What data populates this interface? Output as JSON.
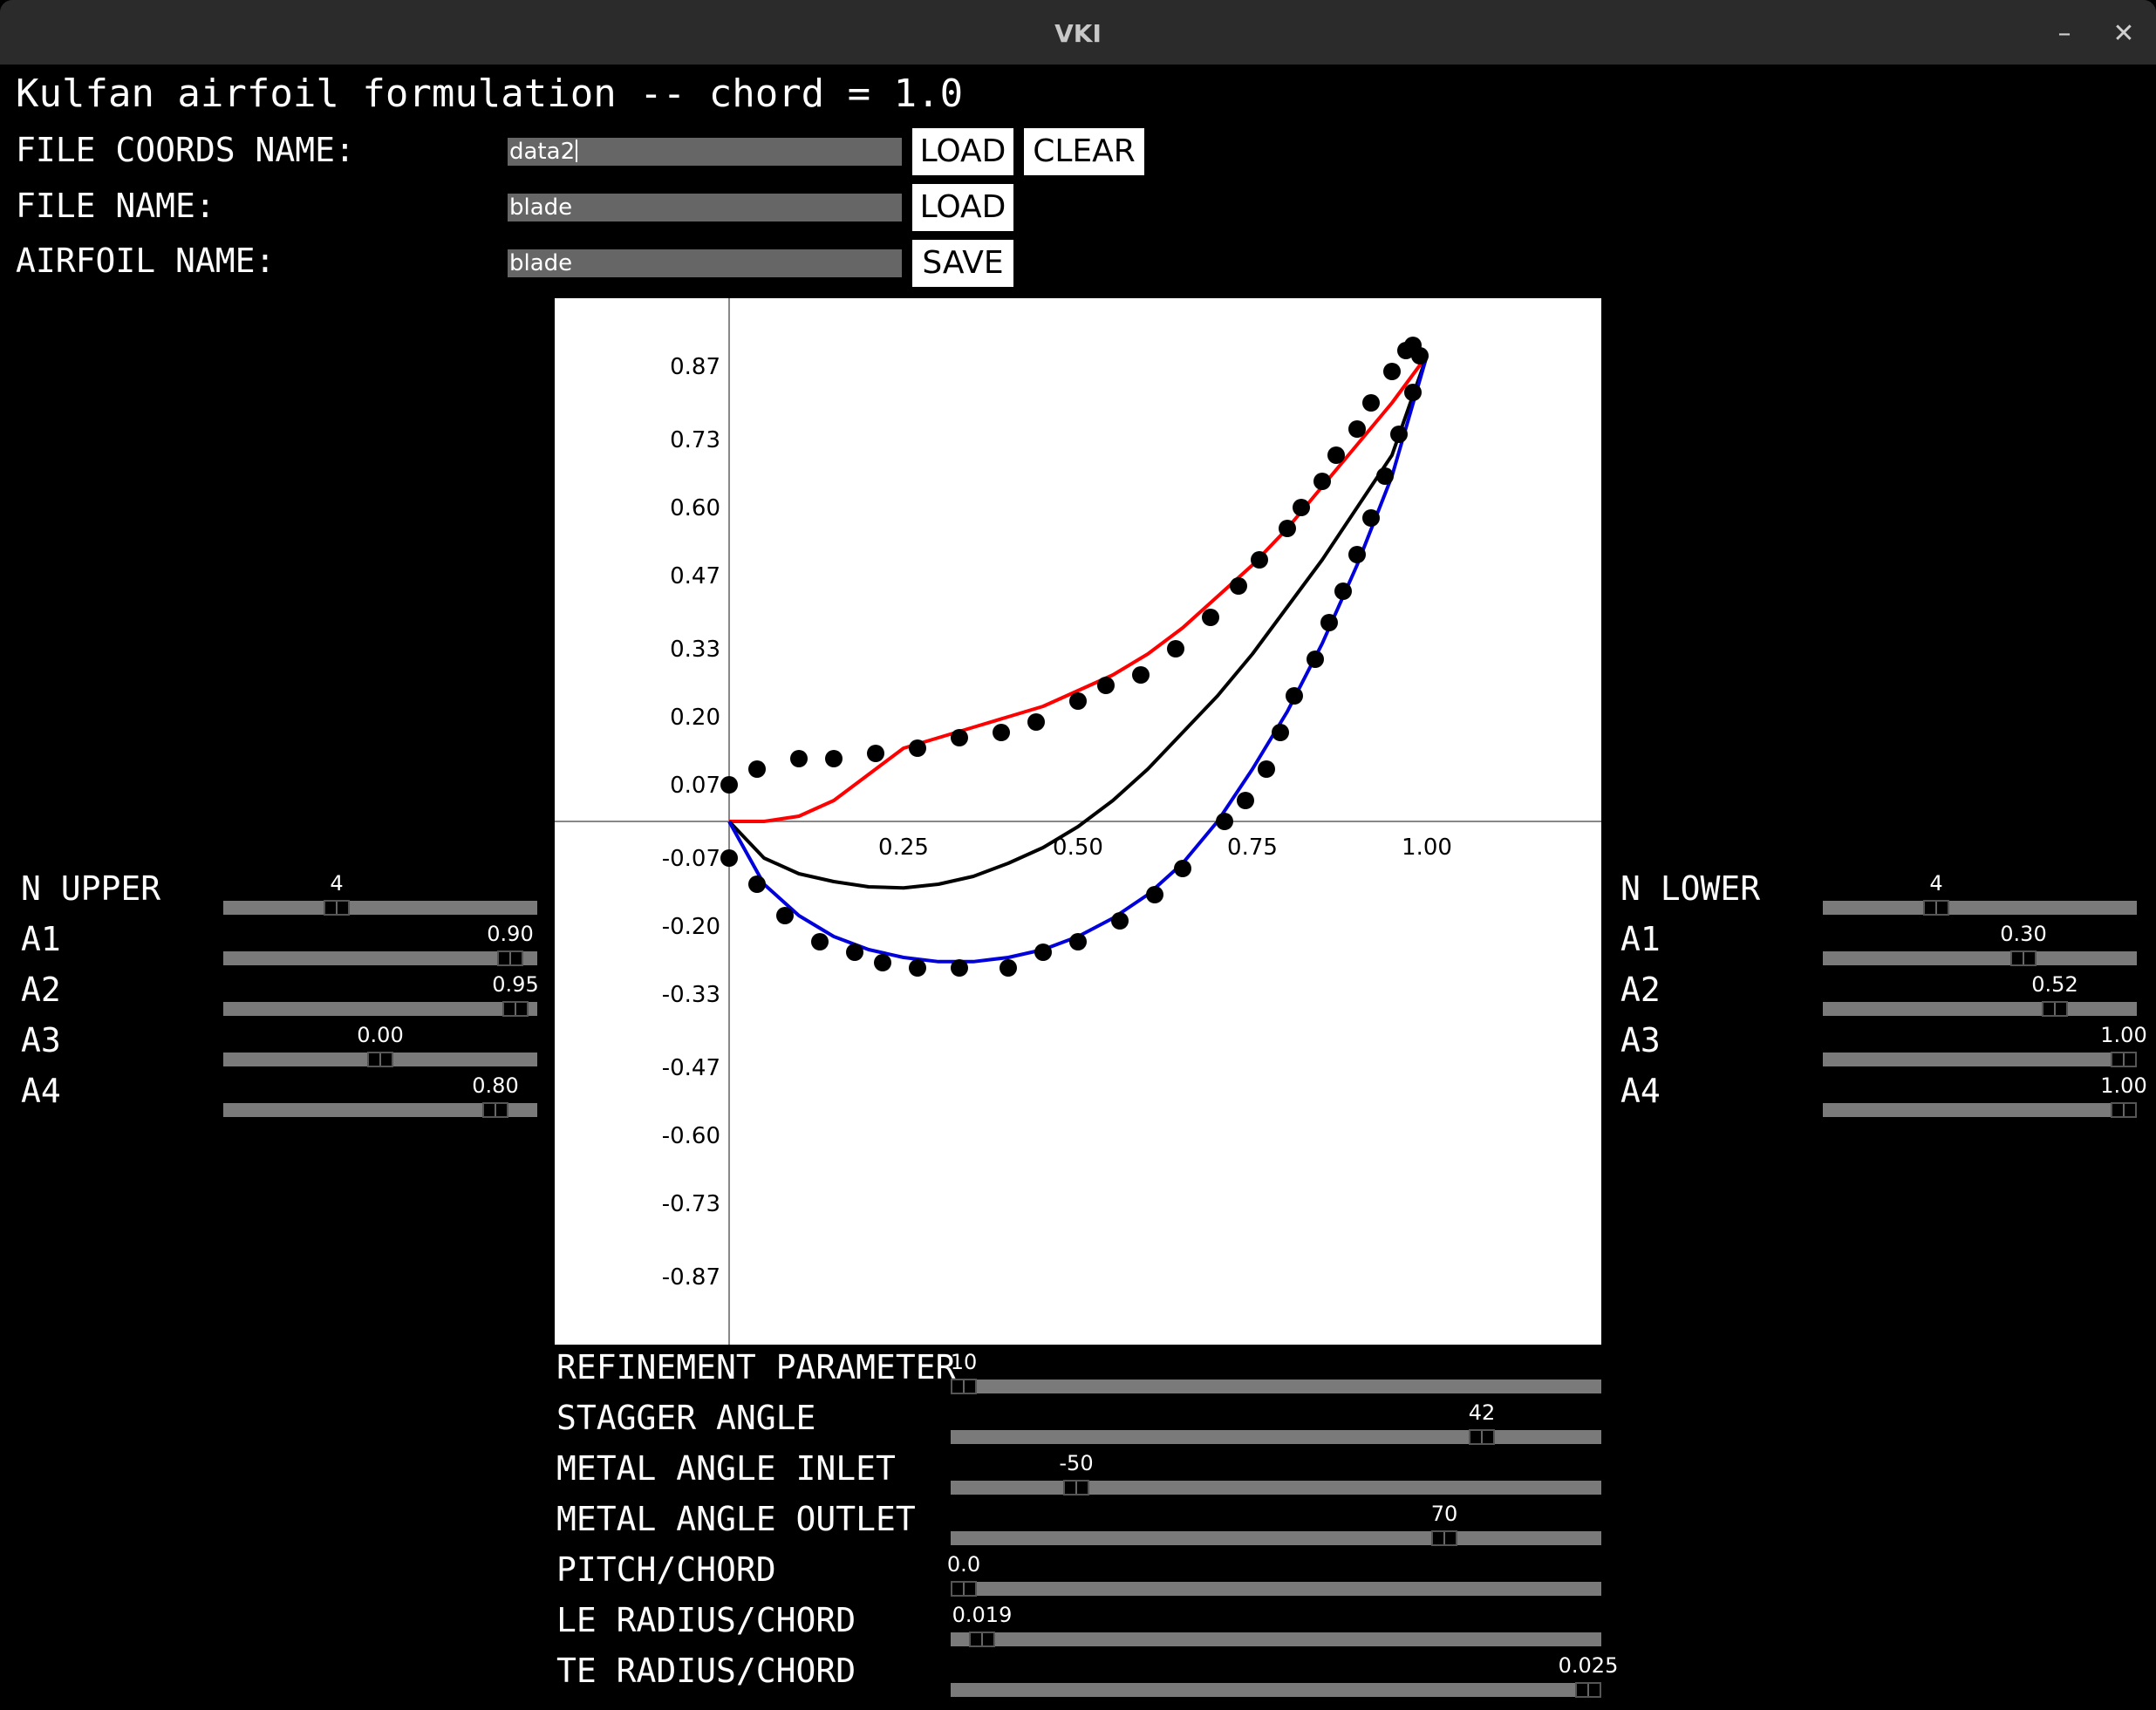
{
  "window": {
    "title": "VKI",
    "minimize_icon": "minimize-icon",
    "close_icon": "close-icon"
  },
  "heading": "Kulfan airfoil formulation -- chord = 1.0",
  "files": {
    "coords_label": "FILE COORDS NAME:",
    "coords_value": "data2",
    "file_label": "FILE NAME:",
    "file_value": "blade",
    "airfoil_label": "AIRFOIL NAME:",
    "airfoil_value": "blade",
    "load_label": "LOAD",
    "clear_label": "CLEAR",
    "save_label": "SAVE"
  },
  "upper": [
    {
      "label": "N UPPER",
      "value": "4",
      "frac": 0.35
    },
    {
      "label": "A1",
      "value": "0.90",
      "frac": 0.95
    },
    {
      "label": "A2",
      "value": "0.95",
      "frac": 0.97
    },
    {
      "label": "A3",
      "value": "0.00",
      "frac": 0.5
    },
    {
      "label": "A4",
      "value": "0.80",
      "frac": 0.9
    }
  ],
  "lower": [
    {
      "label": "N LOWER",
      "value": "4",
      "frac": 0.35
    },
    {
      "label": "A1",
      "value": "0.30",
      "frac": 0.65
    },
    {
      "label": "A2",
      "value": "0.52",
      "frac": 0.76
    },
    {
      "label": "A3",
      "value": "1.00",
      "frac": 1.0
    },
    {
      "label": "A4",
      "value": "1.00",
      "frac": 1.0
    }
  ],
  "bottom": [
    {
      "label": "REFINEMENT PARAMETER",
      "value": "10",
      "frac": 0.0
    },
    {
      "label": "STAGGER ANGLE",
      "value": "42",
      "frac": 0.83
    },
    {
      "label": "METAL ANGLE INLET",
      "value": "-50",
      "frac": 0.18
    },
    {
      "label": "METAL ANGLE OUTLET",
      "value": "70",
      "frac": 0.77
    },
    {
      "label": "PITCH/CHORD",
      "value": "0.0",
      "frac": 0.0
    },
    {
      "label": "LE RADIUS/CHORD",
      "value": "0.019",
      "frac": 0.03
    },
    {
      "label": "TE RADIUS/CHORD",
      "value": "0.025",
      "frac": 1.0
    }
  ],
  "chart_data": {
    "type": "line",
    "xlim": [
      -0.25,
      1.25
    ],
    "ylim": [
      -1.0,
      1.0
    ],
    "x_ticks": [
      "0.25",
      "0.50",
      "0.75",
      "1.00"
    ],
    "y_ticks": [
      "0.87",
      "0.73",
      "0.60",
      "0.47",
      "0.33",
      "0.20",
      "0.07",
      "-0.07",
      "-0.20",
      "-0.33",
      "-0.47",
      "-0.60",
      "-0.73",
      "-0.87"
    ],
    "grid": false,
    "series": [
      {
        "color": "#ff0000",
        "x": [
          0.0,
          0.05,
          0.1,
          0.15,
          0.2,
          0.25,
          0.3,
          0.35,
          0.4,
          0.45,
          0.5,
          0.55,
          0.6,
          0.65,
          0.7,
          0.75,
          0.8,
          0.85,
          0.9,
          0.95,
          1.0
        ],
        "y": [
          0.0,
          0.0,
          0.01,
          0.04,
          0.09,
          0.14,
          0.16,
          0.18,
          0.2,
          0.22,
          0.25,
          0.28,
          0.32,
          0.37,
          0.43,
          0.49,
          0.56,
          0.64,
          0.72,
          0.8,
          0.89
        ]
      },
      {
        "color": "#000000",
        "x": [
          0.0,
          0.05,
          0.1,
          0.15,
          0.2,
          0.25,
          0.3,
          0.35,
          0.4,
          0.45,
          0.5,
          0.55,
          0.6,
          0.65,
          0.7,
          0.75,
          0.8,
          0.85,
          0.9,
          0.95,
          1.0
        ],
        "y": [
          0.0,
          -0.07,
          -0.1,
          -0.115,
          -0.125,
          -0.127,
          -0.12,
          -0.105,
          -0.08,
          -0.05,
          -0.01,
          0.04,
          0.1,
          0.17,
          0.24,
          0.32,
          0.41,
          0.5,
          0.6,
          0.7,
          0.89
        ]
      },
      {
        "color": "#0000dd",
        "x": [
          0.0,
          0.05,
          0.1,
          0.15,
          0.2,
          0.25,
          0.3,
          0.35,
          0.4,
          0.45,
          0.5,
          0.55,
          0.6,
          0.65,
          0.7,
          0.75,
          0.8,
          0.85,
          0.9,
          0.95,
          1.0
        ],
        "y": [
          0.0,
          -0.12,
          -0.18,
          -0.22,
          -0.245,
          -0.26,
          -0.268,
          -0.268,
          -0.26,
          -0.245,
          -0.22,
          -0.185,
          -0.14,
          -0.08,
          0.0,
          0.1,
          0.21,
          0.34,
          0.49,
          0.66,
          0.89
        ]
      }
    ],
    "points": [
      [
        0.0,
        0.07
      ],
      [
        0.04,
        0.1
      ],
      [
        0.1,
        0.12
      ],
      [
        0.15,
        0.12
      ],
      [
        0.21,
        0.13
      ],
      [
        0.27,
        0.14
      ],
      [
        0.33,
        0.16
      ],
      [
        0.39,
        0.17
      ],
      [
        0.44,
        0.19
      ],
      [
        0.5,
        0.23
      ],
      [
        0.54,
        0.26
      ],
      [
        0.59,
        0.28
      ],
      [
        0.64,
        0.33
      ],
      [
        0.69,
        0.39
      ],
      [
        0.73,
        0.45
      ],
      [
        0.76,
        0.5
      ],
      [
        0.8,
        0.56
      ],
      [
        0.82,
        0.6
      ],
      [
        0.85,
        0.65
      ],
      [
        0.87,
        0.7
      ],
      [
        0.9,
        0.75
      ],
      [
        0.92,
        0.8
      ],
      [
        0.95,
        0.86
      ],
      [
        0.97,
        0.9
      ],
      [
        0.98,
        0.91
      ],
      [
        0.0,
        -0.07
      ],
      [
        0.04,
        -0.12
      ],
      [
        0.08,
        -0.18
      ],
      [
        0.13,
        -0.23
      ],
      [
        0.18,
        -0.25
      ],
      [
        0.22,
        -0.27
      ],
      [
        0.27,
        -0.28
      ],
      [
        0.33,
        -0.28
      ],
      [
        0.4,
        -0.28
      ],
      [
        0.45,
        -0.25
      ],
      [
        0.5,
        -0.23
      ],
      [
        0.56,
        -0.19
      ],
      [
        0.61,
        -0.14
      ],
      [
        0.65,
        -0.09
      ],
      [
        0.71,
        0.0
      ],
      [
        0.74,
        0.04
      ],
      [
        0.77,
        0.1
      ],
      [
        0.79,
        0.17
      ],
      [
        0.81,
        0.24
      ],
      [
        0.84,
        0.31
      ],
      [
        0.86,
        0.38
      ],
      [
        0.88,
        0.44
      ],
      [
        0.9,
        0.51
      ],
      [
        0.92,
        0.58
      ],
      [
        0.94,
        0.66
      ],
      [
        0.96,
        0.74
      ],
      [
        0.98,
        0.82
      ],
      [
        0.99,
        0.89
      ]
    ]
  }
}
